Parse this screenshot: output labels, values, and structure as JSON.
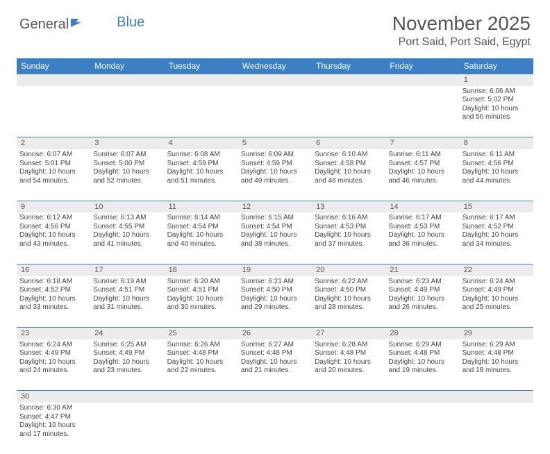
{
  "logo": {
    "text_a": "General",
    "text_b": "Blue"
  },
  "title": "November 2025",
  "location": "Port Said, Port Said, Egypt",
  "colors": {
    "header_bg": "#3b7fc4",
    "daynum_bg": "#ececec",
    "border": "#3b7fc4",
    "text": "#444"
  },
  "weekdays": [
    "Sunday",
    "Monday",
    "Tuesday",
    "Wednesday",
    "Thursday",
    "Friday",
    "Saturday"
  ],
  "weeks": [
    {
      "days": [
        null,
        null,
        null,
        null,
        null,
        null,
        {
          "n": "1",
          "sunrise": "6:06 AM",
          "sunset": "5:02 PM",
          "dl": "10 hours and 56 minutes."
        }
      ]
    },
    {
      "days": [
        {
          "n": "2",
          "sunrise": "6:07 AM",
          "sunset": "5:01 PM",
          "dl": "10 hours and 54 minutes."
        },
        {
          "n": "3",
          "sunrise": "6:07 AM",
          "sunset": "5:00 PM",
          "dl": "10 hours and 52 minutes."
        },
        {
          "n": "4",
          "sunrise": "6:08 AM",
          "sunset": "4:59 PM",
          "dl": "10 hours and 51 minutes."
        },
        {
          "n": "5",
          "sunrise": "6:09 AM",
          "sunset": "4:59 PM",
          "dl": "10 hours and 49 minutes."
        },
        {
          "n": "6",
          "sunrise": "6:10 AM",
          "sunset": "4:58 PM",
          "dl": "10 hours and 48 minutes."
        },
        {
          "n": "7",
          "sunrise": "6:11 AM",
          "sunset": "4:57 PM",
          "dl": "10 hours and 46 minutes."
        },
        {
          "n": "8",
          "sunrise": "6:11 AM",
          "sunset": "4:56 PM",
          "dl": "10 hours and 44 minutes."
        }
      ]
    },
    {
      "days": [
        {
          "n": "9",
          "sunrise": "6:12 AM",
          "sunset": "4:56 PM",
          "dl": "10 hours and 43 minutes."
        },
        {
          "n": "10",
          "sunrise": "6:13 AM",
          "sunset": "4:55 PM",
          "dl": "10 hours and 41 minutes."
        },
        {
          "n": "11",
          "sunrise": "6:14 AM",
          "sunset": "4:54 PM",
          "dl": "10 hours and 40 minutes."
        },
        {
          "n": "12",
          "sunrise": "6:15 AM",
          "sunset": "4:54 PM",
          "dl": "10 hours and 38 minutes."
        },
        {
          "n": "13",
          "sunrise": "6:16 AM",
          "sunset": "4:53 PM",
          "dl": "10 hours and 37 minutes."
        },
        {
          "n": "14",
          "sunrise": "6:17 AM",
          "sunset": "4:53 PM",
          "dl": "10 hours and 36 minutes."
        },
        {
          "n": "15",
          "sunrise": "6:17 AM",
          "sunset": "4:52 PM",
          "dl": "10 hours and 34 minutes."
        }
      ]
    },
    {
      "days": [
        {
          "n": "16",
          "sunrise": "6:18 AM",
          "sunset": "4:52 PM",
          "dl": "10 hours and 33 minutes."
        },
        {
          "n": "17",
          "sunrise": "6:19 AM",
          "sunset": "4:51 PM",
          "dl": "10 hours and 31 minutes."
        },
        {
          "n": "18",
          "sunrise": "6:20 AM",
          "sunset": "4:51 PM",
          "dl": "10 hours and 30 minutes."
        },
        {
          "n": "19",
          "sunrise": "6:21 AM",
          "sunset": "4:50 PM",
          "dl": "10 hours and 29 minutes."
        },
        {
          "n": "20",
          "sunrise": "6:22 AM",
          "sunset": "4:50 PM",
          "dl": "10 hours and 28 minutes."
        },
        {
          "n": "21",
          "sunrise": "6:23 AM",
          "sunset": "4:49 PM",
          "dl": "10 hours and 26 minutes."
        },
        {
          "n": "22",
          "sunrise": "6:24 AM",
          "sunset": "4:49 PM",
          "dl": "10 hours and 25 minutes."
        }
      ]
    },
    {
      "days": [
        {
          "n": "23",
          "sunrise": "6:24 AM",
          "sunset": "4:49 PM",
          "dl": "10 hours and 24 minutes."
        },
        {
          "n": "24",
          "sunrise": "6:25 AM",
          "sunset": "4:49 PM",
          "dl": "10 hours and 23 minutes."
        },
        {
          "n": "25",
          "sunrise": "6:26 AM",
          "sunset": "4:48 PM",
          "dl": "10 hours and 22 minutes."
        },
        {
          "n": "26",
          "sunrise": "6:27 AM",
          "sunset": "4:48 PM",
          "dl": "10 hours and 21 minutes."
        },
        {
          "n": "27",
          "sunrise": "6:28 AM",
          "sunset": "4:48 PM",
          "dl": "10 hours and 20 minutes."
        },
        {
          "n": "28",
          "sunrise": "6:29 AM",
          "sunset": "4:48 PM",
          "dl": "10 hours and 19 minutes."
        },
        {
          "n": "29",
          "sunrise": "6:29 AM",
          "sunset": "4:48 PM",
          "dl": "10 hours and 18 minutes."
        }
      ]
    },
    {
      "days": [
        {
          "n": "30",
          "sunrise": "6:30 AM",
          "sunset": "4:47 PM",
          "dl": "10 hours and 17 minutes."
        },
        null,
        null,
        null,
        null,
        null,
        null
      ]
    }
  ]
}
